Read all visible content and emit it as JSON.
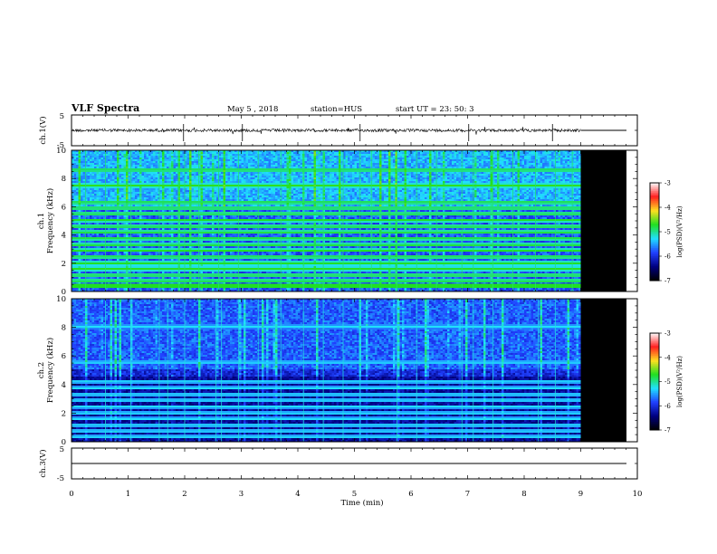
{
  "header": {
    "title": "VLF Spectra",
    "date": "May 5 , 2018",
    "station": "station=HUS",
    "start_ut": "start UT = 23: 50: 3"
  },
  "colorbar": {
    "label": "log(PSD)(V²/Hz)",
    "ticks": [
      "-3",
      "-4",
      "-5",
      "-6",
      "-7"
    ],
    "colors": [
      "#ffffff",
      "#ff2020",
      "#ffe020",
      "#20e020",
      "#20e0ff",
      "#2040ff",
      "#000080",
      "#000000"
    ]
  },
  "chart_data": [
    {
      "type": "line",
      "name": "ch.1 waveform",
      "ylabel": "ch.1(V)",
      "ylim": [
        -5,
        5
      ],
      "yticks": [
        "5",
        "-5"
      ],
      "xlim": [
        0,
        10
      ],
      "x_data_end": 9.0,
      "baseline": 0
    },
    {
      "type": "heatmap",
      "name": "ch.1 spectrogram",
      "ylabel_top": "ch.1",
      "ylabel": "Frequency (kHz)",
      "ylim": [
        0,
        10
      ],
      "yticks": [
        "0",
        "2",
        "4",
        "6",
        "8",
        "10"
      ],
      "xlim": [
        0,
        10
      ],
      "x_data_end": 9.0,
      "zlim": [
        -7,
        -3
      ],
      "bands_khz": [
        0.35,
        0.75,
        1.15,
        1.6,
        2.0,
        2.45,
        2.9,
        3.3,
        3.75,
        4.2,
        4.6,
        5.05,
        5.5,
        5.9,
        6.3,
        7.5,
        8.6
      ],
      "sferics_min": [
        0.25,
        0.6,
        1.05,
        1.55,
        1.9,
        2.0,
        2.25,
        2.6,
        2.95,
        3.3,
        3.7,
        4.1,
        4.45,
        4.8,
        5.1,
        5.3,
        5.75,
        6.1,
        6.45,
        6.9,
        7.1,
        7.45,
        7.8,
        8.2,
        8.55,
        8.85
      ]
    },
    {
      "type": "heatmap",
      "name": "ch.2 spectrogram",
      "ylabel_top": "ch.2",
      "ylabel": "Frequency (kHz)",
      "ylim": [
        0,
        10
      ],
      "yticks": [
        "0",
        "2",
        "4",
        "6",
        "8",
        "10"
      ],
      "xlim": [
        0,
        10
      ],
      "x_data_end": 9.0,
      "zlim": [
        -7,
        -3
      ],
      "bands_khz": [
        0.35,
        0.75,
        1.15,
        1.6,
        2.0,
        2.45,
        2.9,
        3.3,
        3.75,
        4.2,
        5.55,
        8.05
      ],
      "sferics_min": [
        0.6,
        1.05,
        1.55,
        1.7,
        2.0,
        2.55,
        2.65,
        2.95,
        3.3,
        3.7,
        4.1,
        4.45,
        4.8,
        5.1,
        5.75,
        6.1,
        6.9,
        7.1,
        7.45,
        8.25,
        8.55
      ]
    },
    {
      "type": "line",
      "name": "ch.3 waveform",
      "ylabel": "ch.3(V)",
      "ylim": [
        -5,
        5
      ],
      "yticks": [
        "5",
        "-5"
      ],
      "xlim": [
        0,
        10
      ],
      "x_data_end": 10,
      "baseline": 0
    }
  ],
  "xaxis": {
    "label": "Time (min)",
    "ticks": [
      "0",
      "1",
      "2",
      "3",
      "4",
      "5",
      "6",
      "7",
      "8",
      "9",
      "10"
    ]
  }
}
